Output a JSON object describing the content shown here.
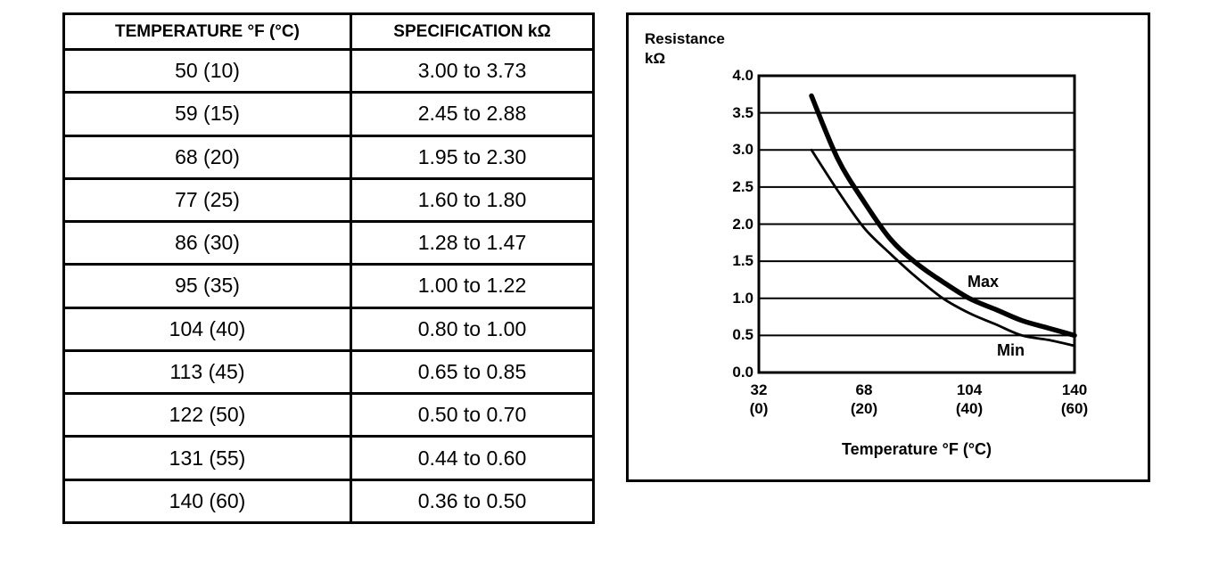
{
  "colors": {
    "foreground": "#000000",
    "background": "#ffffff"
  },
  "table": {
    "headers": [
      "TEMPERATURE °F (°C)",
      "SPECIFICATION kΩ"
    ],
    "rows": [
      {
        "temperature": "50 (10)",
        "specification": "3.00 to 3.73"
      },
      {
        "temperature": "59 (15)",
        "specification": "2.45 to 2.88"
      },
      {
        "temperature": "68 (20)",
        "specification": "1.95 to 2.30"
      },
      {
        "temperature": "77 (25)",
        "specification": "1.60 to 1.80"
      },
      {
        "temperature": "86 (30)",
        "specification": "1.28 to 1.47"
      },
      {
        "temperature": "95 (35)",
        "specification": "1.00 to 1.22"
      },
      {
        "temperature": "104 (40)",
        "specification": "0.80 to 1.00"
      },
      {
        "temperature": "113 (45)",
        "specification": "0.65 to 0.85"
      },
      {
        "temperature": "122 (50)",
        "specification": "0.50 to 0.70"
      },
      {
        "temperature": "131 (55)",
        "specification": "0.44 to 0.60"
      },
      {
        "temperature": "140 (60)",
        "specification": "0.36 to 0.50"
      }
    ]
  },
  "chart": {
    "ylabel_line1": "Resistance",
    "ylabel_line2": "kΩ",
    "xlabel": "Temperature °F (°C)",
    "max_label": "Max",
    "min_label": "Min",
    "y_ticks": [
      "4.0",
      "3.5",
      "3.0",
      "2.5",
      "2.0",
      "1.5",
      "1.0",
      "0.5",
      "0.0"
    ],
    "x_ticks": [
      {
        "f": "32",
        "c": "(0)"
      },
      {
        "f": "68",
        "c": "(20)"
      },
      {
        "f": "104",
        "c": "(40)"
      },
      {
        "f": "140",
        "c": "(60)"
      }
    ]
  },
  "chart_data": {
    "type": "line",
    "title": "",
    "xlabel": "Temperature °F (°C)",
    "ylabel": "Resistance kΩ",
    "x": [
      50,
      59,
      68,
      77,
      86,
      95,
      104,
      113,
      122,
      131,
      140
    ],
    "series": [
      {
        "name": "Max",
        "values": [
          3.73,
          2.88,
          2.3,
          1.8,
          1.47,
          1.22,
          1.0,
          0.85,
          0.7,
          0.6,
          0.5
        ]
      },
      {
        "name": "Min",
        "values": [
          3.0,
          2.45,
          1.95,
          1.6,
          1.28,
          1.0,
          0.8,
          0.65,
          0.5,
          0.44,
          0.36
        ]
      }
    ],
    "xlim": [
      32,
      140
    ],
    "ylim": [
      0.0,
      4.0
    ],
    "y_gridlines_step": 0.5,
    "grid": "horizontal",
    "legend": "inline-annotations"
  }
}
